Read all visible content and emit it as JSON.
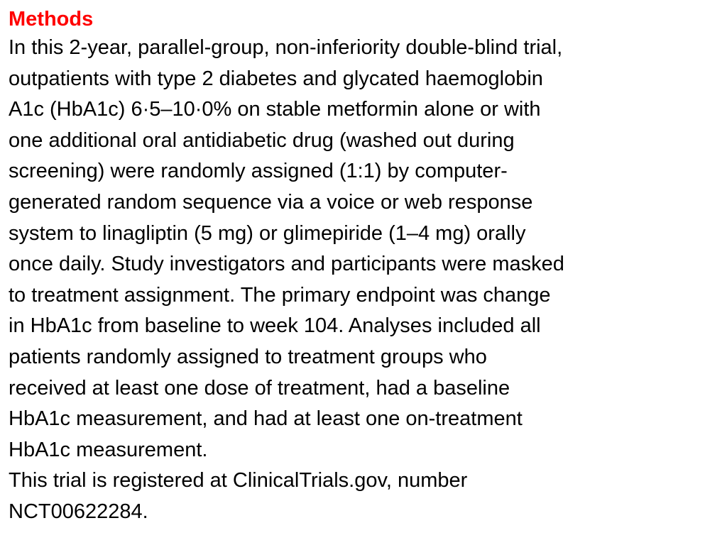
{
  "heading": "Methods",
  "colors": {
    "heading": "#ff0000",
    "text": "#000000",
    "background": "#ffffff"
  },
  "paragraph1_lines": [
    "In this 2-year, parallel-group, non-inferiority double-blind trial,",
    "outpatients with type 2 diabetes and glycated haemoglobin",
    "A1c (HbA1c) 6·5–10·0% on stable metformin alone or with",
    "one additional oral antidiabetic drug (washed out during",
    "screening) were randomly assigned (1:1) by computer-",
    "generated random sequence via a voice or web response",
    "system to linagliptin (5 mg) or glimepiride (1–4 mg) orally",
    "once daily. Study investigators and participants were masked",
    "to treatment assignment. The primary endpoint was change",
    "in HbA1c from baseline to week 104. Analyses included all",
    "patients randomly assigned to treatment groups who",
    "received at least one dose of treatment, had a baseline",
    "HbA1c measurement, and had at least one on-treatment",
    "HbA1c measurement."
  ],
  "paragraph2_lines": [
    "This trial is registered at ClinicalTrials.gov, number",
    "NCT00622284."
  ]
}
